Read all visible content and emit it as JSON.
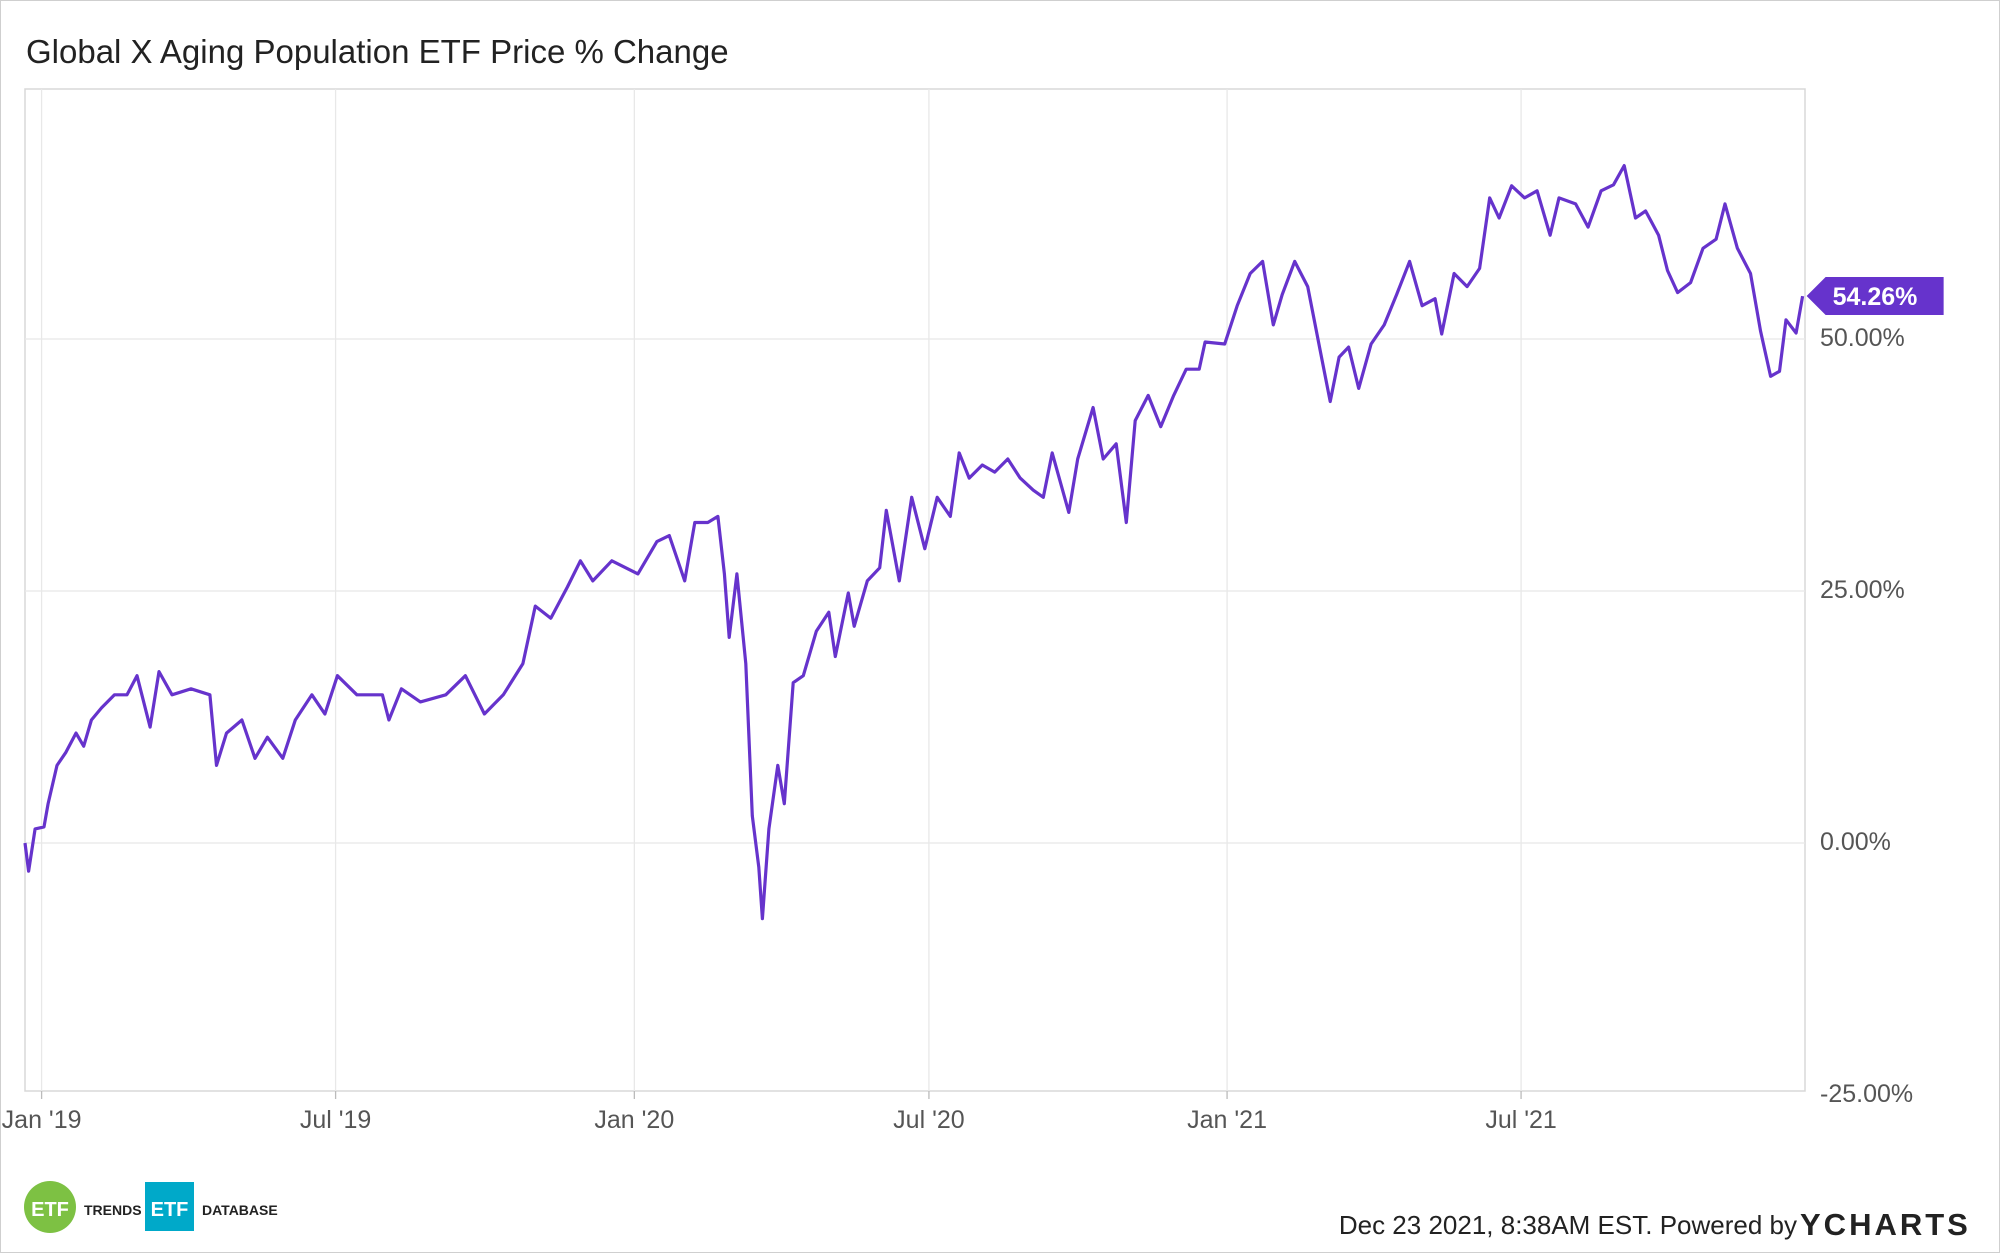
{
  "chart_data": {
    "type": "line",
    "title": "Global X Aging Population ETF Price % Change",
    "xlabel": "",
    "ylabel": "",
    "x_unit": "decimal year",
    "xlim": [
      2018.972,
      2021.975
    ],
    "ylim": [
      -25,
      75
    ],
    "grid": true,
    "x_ticks": [
      {
        "value": 2019.0,
        "label": "Jan '19"
      },
      {
        "value": 2019.496,
        "label": "Jul '19"
      },
      {
        "value": 2020.0,
        "label": "Jan '20"
      },
      {
        "value": 2020.497,
        "label": "Jul '20"
      },
      {
        "value": 2021.0,
        "label": "Jan '21"
      },
      {
        "value": 2021.496,
        "label": "Jul '21"
      }
    ],
    "y_ticks": [
      {
        "value": 50,
        "label": "50.00%"
      },
      {
        "value": 25,
        "label": "25.00%"
      },
      {
        "value": 0,
        "label": "0.00%"
      },
      {
        "value": -25,
        "label": "-25.00%"
      }
    ],
    "series": [
      {
        "name": "Global X Aging Population ETF Price % Change",
        "color": "#6633cc",
        "last_value_label": "54.26%",
        "x": [
          2018.972,
          2018.978,
          2018.989,
          2019.004,
          2019.011,
          2019.026,
          2019.041,
          2019.058,
          2019.071,
          2019.084,
          2019.101,
          2019.123,
          2019.144,
          2019.161,
          2019.183,
          2019.198,
          2019.22,
          2019.252,
          2019.284,
          2019.295,
          2019.312,
          2019.338,
          2019.36,
          2019.381,
          2019.407,
          2019.428,
          2019.456,
          2019.478,
          2019.499,
          2019.532,
          2019.575,
          2019.586,
          2019.607,
          2019.639,
          2019.682,
          2019.715,
          2019.747,
          2019.779,
          2019.812,
          2019.833,
          2019.859,
          2019.887,
          2019.909,
          2019.93,
          2019.962,
          2020.006,
          2020.038,
          2020.059,
          2020.085,
          2020.102,
          2020.124,
          2020.141,
          2020.152,
          2020.16,
          2020.173,
          2020.188,
          2020.199,
          2020.21,
          2020.216,
          2020.227,
          2020.242,
          2020.253,
          2020.268,
          2020.285,
          2020.307,
          2020.328,
          2020.339,
          2020.361,
          2020.371,
          2020.393,
          2020.414,
          2020.425,
          2020.447,
          2020.468,
          2020.49,
          2020.511,
          2020.533,
          2020.548,
          2020.565,
          2020.587,
          2020.608,
          2020.63,
          2020.651,
          2020.673,
          2020.69,
          2020.705,
          2020.733,
          2020.748,
          2020.774,
          2020.791,
          2020.813,
          2020.83,
          2020.845,
          2020.867,
          2020.888,
          2020.91,
          2020.931,
          2020.953,
          2020.963,
          2020.996,
          2021.017,
          2021.039,
          2021.06,
          2021.078,
          2021.093,
          2021.114,
          2021.136,
          2021.157,
          2021.174,
          2021.189,
          2021.205,
          2021.222,
          2021.243,
          2021.265,
          2021.286,
          2021.308,
          2021.329,
          2021.351,
          2021.362,
          2021.383,
          2021.405,
          2021.426,
          2021.443,
          2021.459,
          2021.48,
          2021.502,
          2021.523,
          2021.545,
          2021.56,
          2021.588,
          2021.609,
          2021.631,
          2021.652,
          2021.67,
          2021.689,
          2021.706,
          2021.728,
          2021.743,
          2021.76,
          2021.782,
          2021.803,
          2021.825,
          2021.84,
          2021.861,
          2021.883,
          2021.9,
          2021.917,
          2021.932,
          2021.943,
          2021.96,
          2021.971
        ],
        "y": [
          0,
          -2.8,
          1.4,
          1.6,
          3.9,
          7.7,
          9,
          10.9,
          9.6,
          12.2,
          13.4,
          14.7,
          14.7,
          16.6,
          11.5,
          17,
          14.7,
          15.3,
          14.7,
          7.7,
          10.9,
          12.2,
          8.4,
          10.5,
          8.4,
          12.2,
          14.7,
          12.8,
          16.6,
          14.7,
          14.7,
          12.2,
          15.3,
          14,
          14.7,
          16.6,
          12.8,
          14.7,
          17.8,
          23.5,
          22.3,
          25.4,
          28,
          26,
          28,
          26.7,
          29.9,
          30.5,
          26,
          31.8,
          31.8,
          32.4,
          26.7,
          20.4,
          26.7,
          17.8,
          2.7,
          -2.4,
          -7.5,
          1.4,
          7.7,
          3.9,
          15.9,
          16.6,
          21,
          22.9,
          18.5,
          24.8,
          21.5,
          26,
          27.3,
          33,
          26,
          34.3,
          29.2,
          34.3,
          32.4,
          38.7,
          36.2,
          37.5,
          36.8,
          38.1,
          36.2,
          35,
          34.3,
          38.7,
          32.8,
          38.1,
          43.2,
          38.1,
          39.6,
          31.8,
          41.9,
          44.4,
          41.3,
          44.4,
          47,
          47,
          49.7,
          49.5,
          53.3,
          56.5,
          57.7,
          51.4,
          54.4,
          57.7,
          55.2,
          48.9,
          43.8,
          48.2,
          49.2,
          45.1,
          49.5,
          51.4,
          54.4,
          57.7,
          53.3,
          54,
          50.5,
          56.5,
          55.2,
          57,
          64,
          62,
          65.2,
          64,
          64.7,
          60.3,
          64,
          63.4,
          61.1,
          64.7,
          65.3,
          67.2,
          62,
          62.7,
          60.3,
          56.8,
          54.6,
          55.6,
          59,
          59.9,
          63.4,
          59,
          56.5,
          50.8,
          46.3,
          46.8,
          51.9,
          50.6,
          54.26
        ]
      }
    ]
  },
  "footer": {
    "timestamp": "Dec 23 2021, 8:38AM EST. Powered by",
    "brand": "YCHARTS",
    "logo1_mark": "ETF",
    "logo1_text": "TRENDS",
    "logo2_mark": "ETF",
    "logo2_text": "DATABASE"
  }
}
